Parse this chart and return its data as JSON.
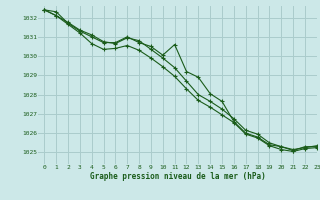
{
  "title": "Graphe pression niveau de la mer (hPa)",
  "background_color": "#cce8e8",
  "grid_color": "#aacccc",
  "line_color": "#1a5c1a",
  "xlim": [
    -0.5,
    23
  ],
  "ylim": [
    1024.4,
    1032.6
  ],
  "yticks": [
    1025,
    1026,
    1027,
    1028,
    1029,
    1030,
    1031,
    1032
  ],
  "xticks": [
    0,
    1,
    2,
    3,
    4,
    5,
    6,
    7,
    8,
    9,
    10,
    11,
    12,
    13,
    14,
    15,
    16,
    17,
    18,
    19,
    20,
    21,
    22,
    23
  ],
  "hours": [
    0,
    1,
    2,
    3,
    4,
    5,
    6,
    7,
    8,
    9,
    10,
    11,
    12,
    13,
    14,
    15,
    16,
    17,
    18,
    19,
    20,
    21,
    22,
    23
  ],
  "line1": [
    1032.4,
    1032.3,
    1031.7,
    1031.3,
    1031.0,
    1030.7,
    1030.7,
    1031.0,
    1030.7,
    1030.5,
    1030.05,
    1030.6,
    1029.2,
    1028.9,
    1028.05,
    1027.65,
    1026.6,
    1026.0,
    1025.8,
    1025.4,
    1025.3,
    1025.1,
    1025.3,
    1025.3
  ],
  "line2": [
    1032.4,
    1032.1,
    1031.75,
    1031.35,
    1031.1,
    1030.75,
    1030.65,
    1030.95,
    1030.8,
    1030.35,
    1029.9,
    1029.4,
    1028.7,
    1028.0,
    1027.65,
    1027.25,
    1026.75,
    1026.15,
    1025.95,
    1025.5,
    1025.3,
    1025.15,
    1025.25,
    1025.35
  ],
  "line3": [
    1032.4,
    1032.1,
    1031.65,
    1031.2,
    1030.65,
    1030.35,
    1030.4,
    1030.55,
    1030.3,
    1029.9,
    1029.45,
    1028.95,
    1028.3,
    1027.7,
    1027.35,
    1026.95,
    1026.55,
    1025.95,
    1025.75,
    1025.35,
    1025.15,
    1025.05,
    1025.2,
    1025.25
  ]
}
